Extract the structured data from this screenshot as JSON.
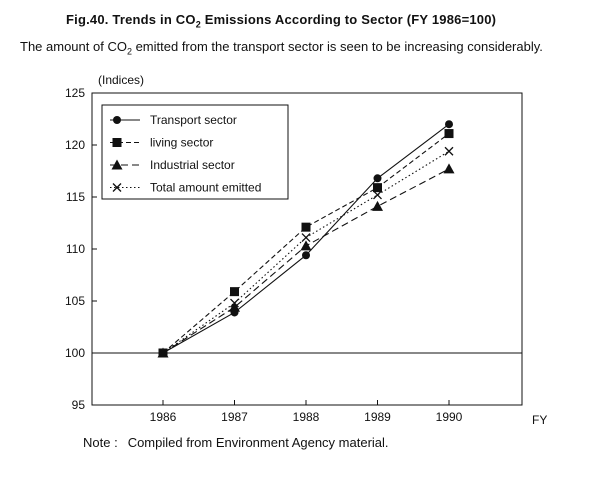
{
  "header": {
    "title_pre": "Fig.40. Trends in CO",
    "title_sub": "2",
    "title_post": " Emissions According to Sector (FY 1986=100)",
    "subtitle_pre": "The amount of CO",
    "subtitle_sub": "2",
    "subtitle_post": " emitted from the transport sector is seen to be increasing considerably."
  },
  "note": {
    "label": "Note :",
    "text": "Compiled from Environment Agency material."
  },
  "chart_data": {
    "type": "line",
    "title": "Fig.40. Trends in CO2 Emissions According to Sector (FY 1986=100)",
    "xlabel": "FY",
    "ylabel": "(Indices)",
    "x": [
      1986,
      1987,
      1988,
      1989,
      1990
    ],
    "x_tick_labels": [
      "1986",
      "1987",
      "1988",
      "1989",
      "1990"
    ],
    "ylim": [
      95,
      125
    ],
    "y_ticks": [
      95,
      100,
      105,
      110,
      115,
      120,
      125
    ],
    "baseline": 100,
    "legend_position": "top-left",
    "grid": false,
    "series": [
      {
        "name": "Transport sector",
        "marker": "circle",
        "line": "solid",
        "values": [
          100,
          103.9,
          109.4,
          116.8,
          122.0
        ]
      },
      {
        "name": "living sector",
        "marker": "square",
        "line": "dashed",
        "values": [
          100,
          105.9,
          112.1,
          115.9,
          121.1
        ]
      },
      {
        "name": "Industrial sector",
        "marker": "triangle",
        "line": "longdash",
        "values": [
          100,
          104.4,
          110.3,
          114.1,
          117.7
        ]
      },
      {
        "name": "Total amount emitted",
        "marker": "x",
        "line": "dotted",
        "values": [
          100,
          104.8,
          111.1,
          115.2,
          119.4
        ]
      }
    ]
  }
}
